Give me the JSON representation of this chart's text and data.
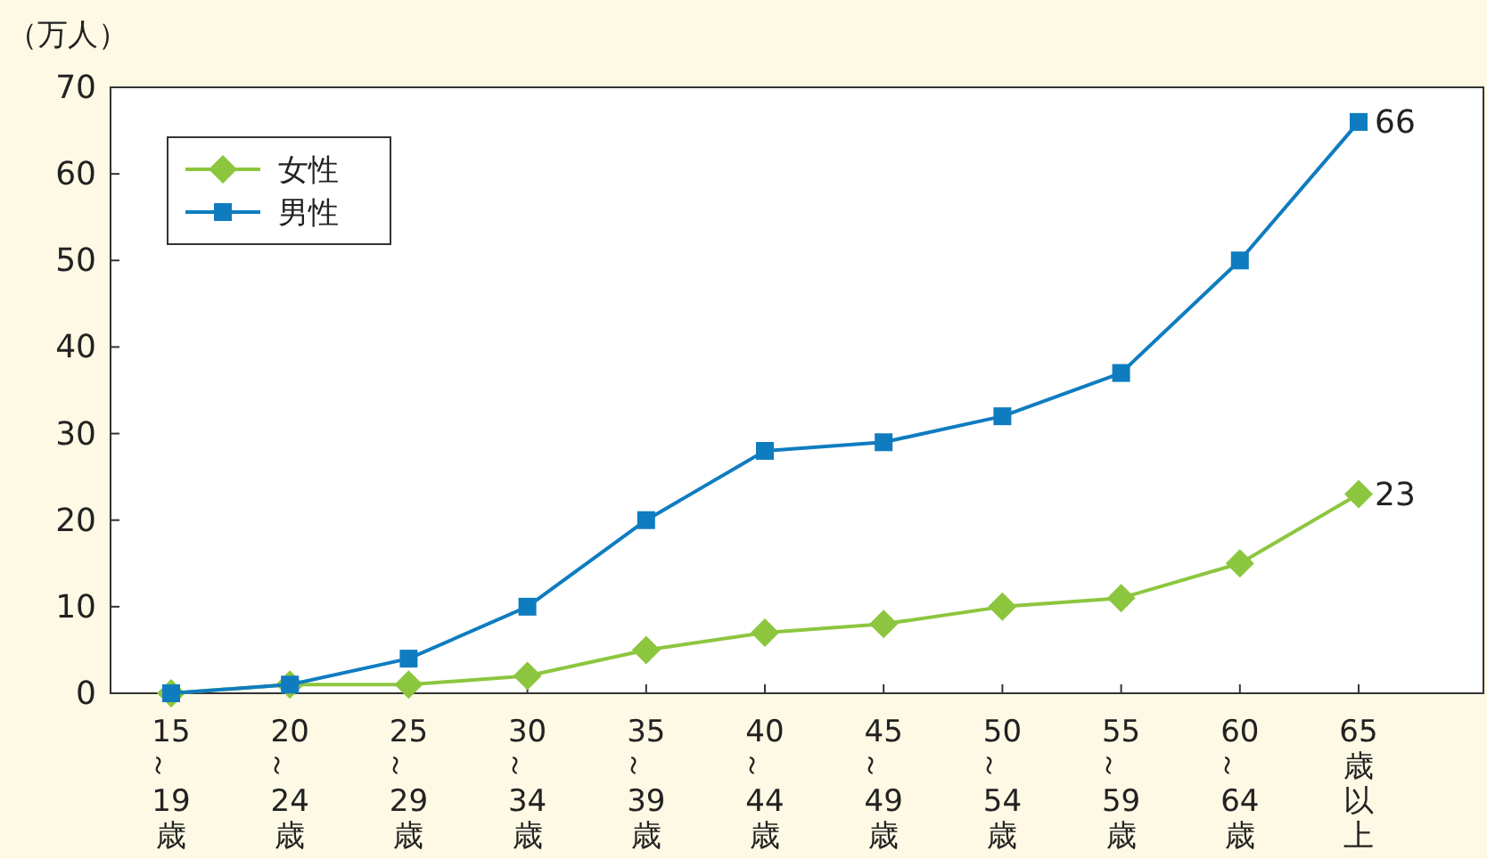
{
  "chart_data": {
    "type": "line",
    "ylabel": "（万人）",
    "categories": [
      "15～19歳",
      "20～24歳",
      "25～29歳",
      "30～34歳",
      "35～39歳",
      "40～44歳",
      "45～49歳",
      "50～54歳",
      "55～59歳",
      "60～64歳",
      "65歳以上"
    ],
    "series": [
      {
        "name": "女性",
        "color": "#8cc63e",
        "marker": "diamond",
        "values": [
          0,
          1,
          1,
          2,
          5,
          7,
          8,
          10,
          11,
          15,
          23
        ],
        "value_labels": [
          null,
          null,
          null,
          null,
          null,
          null,
          null,
          null,
          null,
          null,
          "23"
        ]
      },
      {
        "name": "男性",
        "color": "#0f7cc0",
        "marker": "square",
        "values": [
          0,
          1,
          4,
          10,
          20,
          28,
          29,
          32,
          37,
          50,
          66
        ],
        "value_labels": [
          null,
          null,
          null,
          null,
          null,
          null,
          null,
          null,
          null,
          null,
          "66"
        ]
      }
    ],
    "ylim": [
      0,
      70
    ],
    "yticks": [
      0,
      10,
      20,
      30,
      40,
      50,
      60,
      70
    ],
    "grid": false,
    "legend": "top left"
  }
}
